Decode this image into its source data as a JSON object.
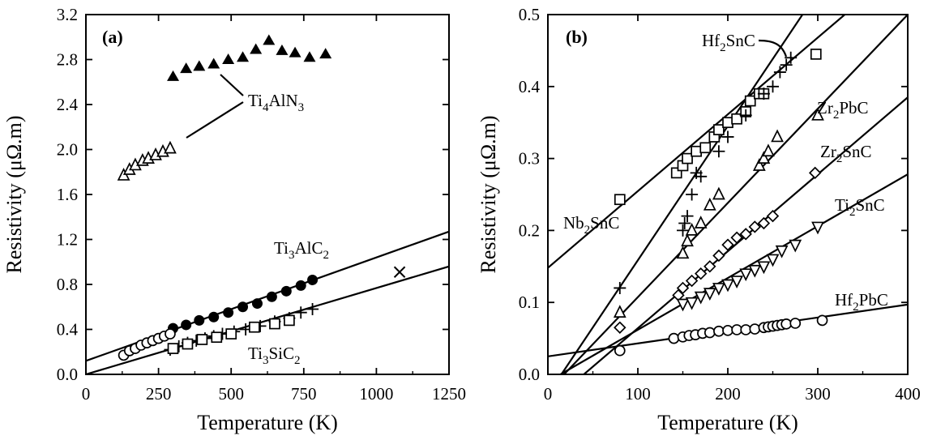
{
  "chart_data": [
    {
      "type": "scatter",
      "panel_label": "(a)",
      "xlabel": "Temperature (K)",
      "ylabel": "Resistivity (μΩ.m)",
      "xlim": [
        0,
        1250
      ],
      "ylim": [
        0,
        3.2
      ],
      "xticks": [
        0,
        250,
        500,
        750,
        1000,
        1250
      ],
      "yticks": [
        0.0,
        0.4,
        0.8,
        1.2,
        1.6,
        2.0,
        2.4,
        2.8,
        3.2
      ],
      "ytick_labels": [
        "0.0",
        "0.4",
        "0.8",
        "1.2",
        "1.6",
        "2.0",
        "2.4",
        "2.8",
        "3.2"
      ],
      "series": [
        {
          "name": "Ti4AlN3",
          "marker": "filled-triangle",
          "x": [
            300,
            345,
            390,
            440,
            490,
            540,
            585,
            630,
            675,
            720,
            770,
            825
          ],
          "y": [
            2.65,
            2.72,
            2.74,
            2.76,
            2.8,
            2.82,
            2.89,
            2.97,
            2.88,
            2.86,
            2.82,
            2.85
          ]
        },
        {
          "name": "Ti4AlN3",
          "marker": "open-triangle",
          "x": [
            130,
            150,
            170,
            195,
            215,
            240,
            265,
            290
          ],
          "y": [
            1.77,
            1.82,
            1.86,
            1.9,
            1.92,
            1.95,
            1.98,
            2.01
          ]
        },
        {
          "name": "Ti3AlC2",
          "marker": "filled-circle",
          "x": [
            300,
            345,
            390,
            440,
            490,
            540,
            590,
            640,
            690,
            740,
            780
          ],
          "y": [
            0.41,
            0.44,
            0.48,
            0.51,
            0.55,
            0.6,
            0.63,
            0.69,
            0.74,
            0.79,
            0.84
          ]
        },
        {
          "name": "Ti3AlC2",
          "marker": "open-circle",
          "x": [
            130,
            150,
            170,
            190,
            210,
            230,
            250,
            270,
            290
          ],
          "y": [
            0.17,
            0.21,
            0.23,
            0.26,
            0.28,
            0.3,
            0.32,
            0.34,
            0.36
          ]
        },
        {
          "name": "Ti3SiC2",
          "marker": "plus",
          "x": [
            290,
            320,
            350,
            380,
            410,
            440,
            470,
            510,
            550,
            600,
            650,
            700,
            740,
            780
          ],
          "y": [
            0.22,
            0.25,
            0.28,
            0.3,
            0.32,
            0.34,
            0.36,
            0.38,
            0.4,
            0.43,
            0.47,
            0.5,
            0.55,
            0.58
          ]
        },
        {
          "name": "Ti3SiC2",
          "marker": "open-square",
          "x": [
            300,
            350,
            400,
            450,
            500,
            580,
            650,
            700
          ],
          "y": [
            0.23,
            0.27,
            0.31,
            0.33,
            0.36,
            0.42,
            0.45,
            0.48
          ]
        },
        {
          "name": "Ti3SiC2",
          "marker": "cross",
          "x": [
            1080
          ],
          "y": [
            0.91
          ]
        }
      ],
      "fit_lines": [
        {
          "name": "Ti3AlC2",
          "x": [
            0,
            1250
          ],
          "y": [
            0.12,
            1.27
          ]
        },
        {
          "name": "Ti3SiC2",
          "x": [
            0,
            1250
          ],
          "y": [
            0.0,
            0.96
          ]
        }
      ],
      "labels": {
        "ti4aln3": {
          "pre": "Ti",
          "s1": "4",
          "mid": "AlN",
          "s2": "3"
        },
        "ti3alc2": {
          "pre": "Ti",
          "s1": "3",
          "mid": "AlC",
          "s2": "2"
        },
        "ti3sic2": {
          "pre": "Ti",
          "s1": "3",
          "mid": "SiC",
          "s2": "2"
        }
      }
    },
    {
      "type": "scatter",
      "panel_label": "(b)",
      "xlabel": "Temperature (K)",
      "ylabel": "Resistivity (μΩ.m)",
      "xlim": [
        0,
        400
      ],
      "ylim": [
        0,
        0.5
      ],
      "xticks": [
        0,
        100,
        200,
        300,
        400
      ],
      "yticks": [
        0.0,
        0.1,
        0.2,
        0.3,
        0.4,
        0.5
      ],
      "ytick_labels": [
        "0.0",
        "0.1",
        "0.2",
        "0.3",
        "0.4",
        "0.5"
      ],
      "series": [
        {
          "name": "Nb2SnC",
          "marker": "open-square",
          "x": [
            80,
            143,
            150,
            155,
            165,
            175,
            185,
            190,
            200,
            210,
            220,
            225,
            235,
            240,
            298
          ],
          "y": [
            0.243,
            0.28,
            0.29,
            0.3,
            0.31,
            0.315,
            0.33,
            0.34,
            0.35,
            0.355,
            0.365,
            0.38,
            0.39,
            0.39,
            0.445
          ]
        },
        {
          "name": "Hf2SnC",
          "marker": "plus",
          "x": [
            80,
            150,
            152,
            155,
            160,
            165,
            170,
            190,
            200,
            220,
            240,
            250,
            258,
            265,
            270
          ],
          "y": [
            0.12,
            0.2,
            0.21,
            0.22,
            0.25,
            0.28,
            0.275,
            0.31,
            0.33,
            0.36,
            0.39,
            0.4,
            0.42,
            0.43,
            0.44
          ]
        },
        {
          "name": "Zr2PbC",
          "marker": "open-triangle",
          "x": [
            80,
            150,
            155,
            160,
            170,
            180,
            190,
            235,
            240,
            245,
            255,
            300
          ],
          "y": [
            0.086,
            0.168,
            0.185,
            0.2,
            0.21,
            0.235,
            0.25,
            0.29,
            0.3,
            0.31,
            0.33,
            0.36
          ]
        },
        {
          "name": "Zr2SnC",
          "marker": "open-diamond",
          "x": [
            80,
            145,
            150,
            160,
            170,
            180,
            190,
            200,
            210,
            220,
            230,
            240,
            250,
            297
          ],
          "y": [
            0.065,
            0.11,
            0.12,
            0.13,
            0.14,
            0.15,
            0.165,
            0.18,
            0.19,
            0.195,
            0.205,
            0.21,
            0.22,
            0.28
          ]
        },
        {
          "name": "Ti2SnC",
          "marker": "open-down-triangle",
          "x": [
            150,
            160,
            170,
            180,
            190,
            200,
            210,
            220,
            230,
            240,
            250,
            260,
            275,
            300
          ],
          "y": [
            0.098,
            0.1,
            0.108,
            0.113,
            0.12,
            0.125,
            0.13,
            0.14,
            0.145,
            0.15,
            0.16,
            0.172,
            0.18,
            0.205
          ]
        },
        {
          "name": "Hf2PbC",
          "marker": "open-circle",
          "x": [
            80,
            140,
            150,
            157,
            164,
            172,
            180,
            190,
            200,
            210,
            220,
            230,
            240,
            245,
            250,
            255,
            260,
            265,
            275,
            305
          ],
          "y": [
            0.033,
            0.05,
            0.052,
            0.054,
            0.055,
            0.057,
            0.058,
            0.06,
            0.061,
            0.062,
            0.062,
            0.063,
            0.065,
            0.066,
            0.067,
            0.068,
            0.069,
            0.07,
            0.071,
            0.075
          ]
        }
      ],
      "fit_lines": [
        {
          "name": "Nb2SnC",
          "x": [
            0,
            330
          ],
          "y": [
            0.148,
            0.5
          ]
        },
        {
          "name": "Hf2SnC",
          "x": [
            15,
            283
          ],
          "y": [
            0.0,
            0.5
          ]
        },
        {
          "name": "Zr2PbC",
          "x": [
            18,
            400
          ],
          "y": [
            0.0,
            0.5
          ]
        },
        {
          "name": "Zr2SnC",
          "x": [
            40,
            400
          ],
          "y": [
            0.0,
            0.385
          ]
        },
        {
          "name": "Ti2SnC",
          "x": [
            14,
            400
          ],
          "y": [
            0.0,
            0.278
          ]
        },
        {
          "name": "Hf2PbC",
          "x": [
            0,
            400
          ],
          "y": [
            0.025,
            0.097
          ]
        }
      ],
      "labels": {
        "hf2snc": {
          "pre": "Hf",
          "s1": "2",
          "mid": "SnC",
          "s2": ""
        },
        "zr2pbc": {
          "pre": "Zr",
          "s1": "2",
          "mid": "PbC",
          "s2": ""
        },
        "zr2snc": {
          "pre": "Zr",
          "s1": "2",
          "mid": "SnC",
          "s2": ""
        },
        "nb2snc": {
          "pre": "Nb",
          "s1": "2",
          "mid": "SnC",
          "s2": ""
        },
        "ti2snc": {
          "pre": "Ti",
          "s1": "2",
          "mid": "SnC",
          "s2": ""
        },
        "hf2pbc": {
          "pre": "Hf",
          "s1": "2",
          "mid": "PbC",
          "s2": ""
        }
      }
    }
  ]
}
